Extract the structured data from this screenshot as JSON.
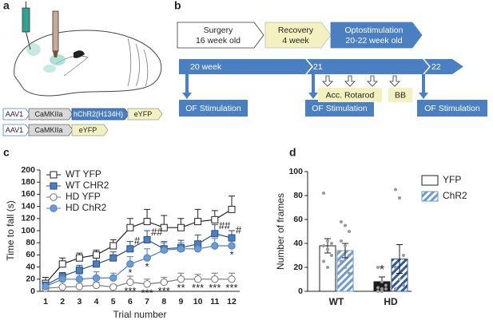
{
  "panel_labels": [
    "a",
    "b",
    "c",
    "d"
  ],
  "constructs": [
    [
      "AAV1",
      "CaMKIIa",
      "hChR2(H134H)",
      "eYFP"
    ],
    [
      "AAV1",
      "CaMKIIa",
      "eYFP"
    ]
  ],
  "timeline": {
    "phases": [
      [
        "Surgery",
        "16 week old"
      ],
      [
        "Recovery",
        "4 week"
      ],
      [
        "Optostimulation",
        "20-22 week old"
      ]
    ],
    "weeks": [
      "20 week",
      "21",
      "22"
    ],
    "stimulation": "OF Stimulation",
    "tests": [
      "Acc. Rotarod",
      "BB"
    ]
  },
  "chart_data": [
    {
      "type": "line",
      "ylabel": "Time to fall (s)",
      "xlabel": "Trial number",
      "categories": [
        "1",
        "2",
        "3",
        "4",
        "5",
        "6",
        "7",
        "8",
        "9",
        "10",
        "11",
        "12"
      ],
      "ylim": [
        0,
        200
      ],
      "yticks": [
        0,
        20,
        40,
        60,
        80,
        100,
        120,
        140,
        160,
        180,
        200
      ],
      "legend": "upper left",
      "series": [
        {
          "name": "WT YFP",
          "marker": "square",
          "color": "#ffffff",
          "stroke": "#222222",
          "values": [
            13,
            45,
            55,
            60,
            75,
            105,
            115,
            105,
            105,
            115,
            118,
            135
          ],
          "errors": [
            10,
            10,
            8,
            8,
            10,
            15,
            20,
            20,
            15,
            20,
            15,
            22
          ]
        },
        {
          "name": "WT CHR2",
          "marker": "square",
          "color": "#4a7fc1",
          "stroke": "#2b4f80",
          "values": [
            10,
            25,
            35,
            45,
            55,
            70,
            85,
            70,
            72,
            78,
            95,
            88
          ],
          "errors": [
            5,
            6,
            8,
            10,
            10,
            12,
            15,
            12,
            12,
            15,
            15,
            12
          ],
          "significance": [
            null,
            null,
            null,
            null,
            null,
            "#",
            "##",
            null,
            null,
            null,
            "##",
            "#"
          ],
          "sig_position": "right"
        },
        {
          "name": "HD YFP",
          "marker": "circle",
          "color": "#ffffff",
          "stroke": "#777777",
          "values": [
            5,
            7,
            8,
            10,
            7,
            15,
            12,
            15,
            20,
            20,
            20,
            20
          ],
          "errors": [
            3,
            3,
            4,
            5,
            4,
            10,
            8,
            8,
            10,
            8,
            10,
            10
          ],
          "significance": [
            null,
            null,
            null,
            null,
            null,
            "***",
            "***",
            "***",
            "**",
            "***",
            "***",
            "***"
          ],
          "sig_position": "below"
        },
        {
          "name": "HD ChR2",
          "marker": "circle",
          "color": "#6d9bd1",
          "stroke": "#4a7fc1",
          "values": [
            8,
            20,
            20,
            22,
            22,
            45,
            55,
            68,
            70,
            70,
            75,
            75
          ],
          "errors": [
            4,
            5,
            8,
            10,
            8,
            12,
            15,
            12,
            10,
            12,
            12,
            10
          ],
          "significance": [
            null,
            null,
            null,
            null,
            null,
            "*",
            "*",
            null,
            null,
            null,
            null,
            "*"
          ],
          "sig_position": "below"
        }
      ]
    },
    {
      "type": "bar",
      "ylabel": "Number of frames",
      "categories": [
        "WT",
        "HD"
      ],
      "ylim": [
        0,
        100
      ],
      "yticks": [
        0,
        20,
        40,
        60,
        80,
        100
      ],
      "legend": "upper right",
      "series": [
        {
          "name": "YFP",
          "hatch": false,
          "color": "#ffffff",
          "colors": [
            "#ffffff",
            "#1a1a1a"
          ],
          "values": [
            38,
            8
          ],
          "errors": [
            6,
            4
          ],
          "points": [
            [
              82,
              42,
              40,
              38,
              35,
              30,
              25,
              20
            ],
            [
              20,
              8,
              5,
              3,
              2,
              2,
              0,
              0
            ]
          ],
          "significance": [
            null,
            "*"
          ]
        },
        {
          "name": "ChR2",
          "hatch": true,
          "color": "#6d9bd1",
          "colors": [
            "#6d9bd1",
            "#2f5a96"
          ],
          "values": [
            34,
            27
          ],
          "errors": [
            6,
            12
          ],
          "points": [
            [
              58,
              55,
              50,
              42,
              38,
              30,
              25,
              20,
              15
            ],
            [
              85,
              78,
              30,
              20,
              10,
              5,
              2
            ]
          ]
        }
      ]
    }
  ]
}
